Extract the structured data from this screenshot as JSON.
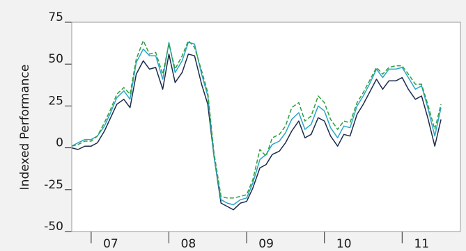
{
  "chart_data": {
    "type": "line",
    "title": "",
    "xlabel": "",
    "ylabel": "Indexed Performance",
    "ylim": [
      -50,
      75
    ],
    "xlim": [
      2006.75,
      2011.75
    ],
    "yticks": [
      75,
      50,
      25,
      0,
      -25,
      -50
    ],
    "ytick_labels": [
      "75",
      "50",
      "25",
      "0",
      "-25",
      "-50"
    ],
    "xticks": [
      2007,
      2008,
      2009,
      2010,
      2011
    ],
    "xtick_labels": [
      "07",
      "08",
      "09",
      "10",
      "11"
    ],
    "grid": false,
    "legend": "none",
    "series": [
      {
        "color": "#1b2a4a",
        "dash": false,
        "points": [
          [
            2006.75,
            0
          ],
          [
            2006.83,
            -1
          ],
          [
            2006.92,
            1
          ],
          [
            2007.0,
            1
          ],
          [
            2007.08,
            3
          ],
          [
            2007.17,
            10
          ],
          [
            2007.25,
            18
          ],
          [
            2007.33,
            26
          ],
          [
            2007.42,
            29
          ],
          [
            2007.5,
            24
          ],
          [
            2007.58,
            44
          ],
          [
            2007.67,
            52
          ],
          [
            2007.75,
            47
          ],
          [
            2007.83,
            48
          ],
          [
            2007.92,
            35
          ],
          [
            2008.0,
            56
          ],
          [
            2008.08,
            39
          ],
          [
            2008.17,
            45
          ],
          [
            2008.25,
            56
          ],
          [
            2008.33,
            55
          ],
          [
            2008.42,
            38
          ],
          [
            2008.5,
            26
          ],
          [
            2008.58,
            -5
          ],
          [
            2008.67,
            -33
          ],
          [
            2008.75,
            -35
          ],
          [
            2008.83,
            -37
          ],
          [
            2008.92,
            -33
          ],
          [
            2009.0,
            -32
          ],
          [
            2009.08,
            -24
          ],
          [
            2009.17,
            -12
          ],
          [
            2009.25,
            -10
          ],
          [
            2009.33,
            -4
          ],
          [
            2009.42,
            -2
          ],
          [
            2009.5,
            3
          ],
          [
            2009.58,
            10
          ],
          [
            2009.67,
            16
          ],
          [
            2009.75,
            6
          ],
          [
            2009.83,
            8
          ],
          [
            2009.92,
            18
          ],
          [
            2010.0,
            16
          ],
          [
            2010.08,
            7
          ],
          [
            2010.17,
            1
          ],
          [
            2010.25,
            8
          ],
          [
            2010.33,
            7
          ],
          [
            2010.42,
            20
          ],
          [
            2010.5,
            26
          ],
          [
            2010.58,
            33
          ],
          [
            2010.67,
            41
          ],
          [
            2010.75,
            35
          ],
          [
            2010.83,
            40
          ],
          [
            2010.92,
            40
          ],
          [
            2011.0,
            42
          ],
          [
            2011.08,
            35
          ],
          [
            2011.17,
            29
          ],
          [
            2011.25,
            31
          ],
          [
            2011.33,
            18
          ],
          [
            2011.42,
            1
          ],
          [
            2011.5,
            17
          ]
        ]
      },
      {
        "color": "#2aa5c8",
        "dash": false,
        "points": [
          [
            2006.75,
            1
          ],
          [
            2006.83,
            3
          ],
          [
            2006.92,
            5
          ],
          [
            2007.0,
            5
          ],
          [
            2007.08,
            7
          ],
          [
            2007.17,
            13
          ],
          [
            2007.25,
            21
          ],
          [
            2007.33,
            30
          ],
          [
            2007.42,
            34
          ],
          [
            2007.5,
            29
          ],
          [
            2007.58,
            51
          ],
          [
            2007.67,
            59
          ],
          [
            2007.75,
            55
          ],
          [
            2007.83,
            55
          ],
          [
            2007.92,
            41
          ],
          [
            2008.0,
            63
          ],
          [
            2008.08,
            45
          ],
          [
            2008.17,
            52
          ],
          [
            2008.25,
            63
          ],
          [
            2008.33,
            62
          ],
          [
            2008.42,
            44
          ],
          [
            2008.5,
            31
          ],
          [
            2008.58,
            -5
          ],
          [
            2008.67,
            -31
          ],
          [
            2008.75,
            -33
          ],
          [
            2008.83,
            -34
          ],
          [
            2008.92,
            -31
          ],
          [
            2009.0,
            -30
          ],
          [
            2009.08,
            -21
          ],
          [
            2009.17,
            -7
          ],
          [
            2009.25,
            -4
          ],
          [
            2009.33,
            2
          ],
          [
            2009.42,
            4
          ],
          [
            2009.5,
            9
          ],
          [
            2009.58,
            17
          ],
          [
            2009.67,
            21
          ],
          [
            2009.75,
            11
          ],
          [
            2009.83,
            14
          ],
          [
            2009.92,
            25
          ],
          [
            2010.0,
            22
          ],
          [
            2010.08,
            12
          ],
          [
            2010.17,
            6
          ],
          [
            2010.25,
            13
          ],
          [
            2010.33,
            12
          ],
          [
            2010.42,
            25
          ],
          [
            2010.5,
            31
          ],
          [
            2010.58,
            38
          ],
          [
            2010.67,
            47
          ],
          [
            2010.75,
            42
          ],
          [
            2010.83,
            47
          ],
          [
            2010.92,
            47
          ],
          [
            2011.0,
            48
          ],
          [
            2011.08,
            42
          ],
          [
            2011.17,
            35
          ],
          [
            2011.25,
            37
          ],
          [
            2011.33,
            24
          ],
          [
            2011.42,
            7
          ],
          [
            2011.5,
            24
          ]
        ]
      },
      {
        "color": "#2e9e3e",
        "dash": true,
        "points": [
          [
            2006.75,
            1
          ],
          [
            2006.83,
            2
          ],
          [
            2006.92,
            4
          ],
          [
            2007.0,
            4
          ],
          [
            2007.08,
            7
          ],
          [
            2007.17,
            15
          ],
          [
            2007.25,
            23
          ],
          [
            2007.33,
            32
          ],
          [
            2007.42,
            36
          ],
          [
            2007.5,
            32
          ],
          [
            2007.58,
            53
          ],
          [
            2007.67,
            64
          ],
          [
            2007.75,
            56
          ],
          [
            2007.83,
            57
          ],
          [
            2007.92,
            44
          ],
          [
            2008.0,
            62
          ],
          [
            2008.08,
            47
          ],
          [
            2008.17,
            55
          ],
          [
            2008.25,
            64
          ],
          [
            2008.33,
            60
          ],
          [
            2008.42,
            46
          ],
          [
            2008.5,
            33
          ],
          [
            2008.58,
            -3
          ],
          [
            2008.67,
            -29
          ],
          [
            2008.75,
            -30
          ],
          [
            2008.83,
            -30
          ],
          [
            2008.92,
            -29
          ],
          [
            2009.0,
            -28
          ],
          [
            2009.08,
            -19
          ],
          [
            2009.17,
            -1
          ],
          [
            2009.25,
            -5
          ],
          [
            2009.33,
            6
          ],
          [
            2009.42,
            8
          ],
          [
            2009.5,
            13
          ],
          [
            2009.58,
            24
          ],
          [
            2009.67,
            27
          ],
          [
            2009.75,
            16
          ],
          [
            2009.83,
            19
          ],
          [
            2009.92,
            31
          ],
          [
            2010.0,
            27
          ],
          [
            2010.08,
            17
          ],
          [
            2010.17,
            11
          ],
          [
            2010.25,
            16
          ],
          [
            2010.33,
            15
          ],
          [
            2010.42,
            27
          ],
          [
            2010.5,
            33
          ],
          [
            2010.58,
            40
          ],
          [
            2010.67,
            48
          ],
          [
            2010.75,
            44
          ],
          [
            2010.83,
            48
          ],
          [
            2010.92,
            49
          ],
          [
            2011.0,
            49
          ],
          [
            2011.08,
            44
          ],
          [
            2011.17,
            38
          ],
          [
            2011.25,
            38
          ],
          [
            2011.33,
            26
          ],
          [
            2011.42,
            11
          ],
          [
            2011.5,
            26
          ]
        ]
      }
    ]
  }
}
